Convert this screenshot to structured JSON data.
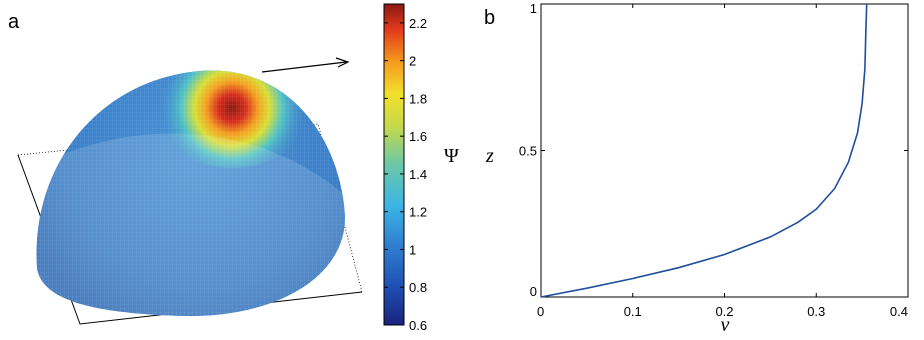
{
  "chart_data": [
    {
      "panel": "a",
      "type": "heatmap",
      "description_visible": "hemisphere surface colored by Psi",
      "colorbar": {
        "label": "Ψ",
        "min": 0.6,
        "max": 2.3,
        "ticks": [
          "0.6",
          "0.8",
          "1",
          "1.2",
          "1.4",
          "1.6",
          "1.8",
          "2",
          "2.2"
        ],
        "colormap": "jet"
      }
    },
    {
      "panel": "b",
      "type": "line",
      "xlabel": "v",
      "ylabel": "z",
      "xlim": [
        0,
        0.4
      ],
      "ylim": [
        0,
        1
      ],
      "xticks": [
        "0",
        "0.1",
        "0.2",
        "0.3",
        "0.4"
      ],
      "yticks": [
        "0",
        "0.5",
        "1"
      ],
      "series_color": "#1f4e9c",
      "x": [
        0.0,
        0.05,
        0.1,
        0.15,
        0.2,
        0.25,
        0.28,
        0.3,
        0.32,
        0.335,
        0.345,
        0.35,
        0.353,
        0.354,
        0.355
      ],
      "y": [
        0.0,
        0.03,
        0.063,
        0.1,
        0.145,
        0.205,
        0.255,
        0.3,
        0.37,
        0.46,
        0.56,
        0.66,
        0.78,
        0.9,
        1.0
      ]
    }
  ]
}
